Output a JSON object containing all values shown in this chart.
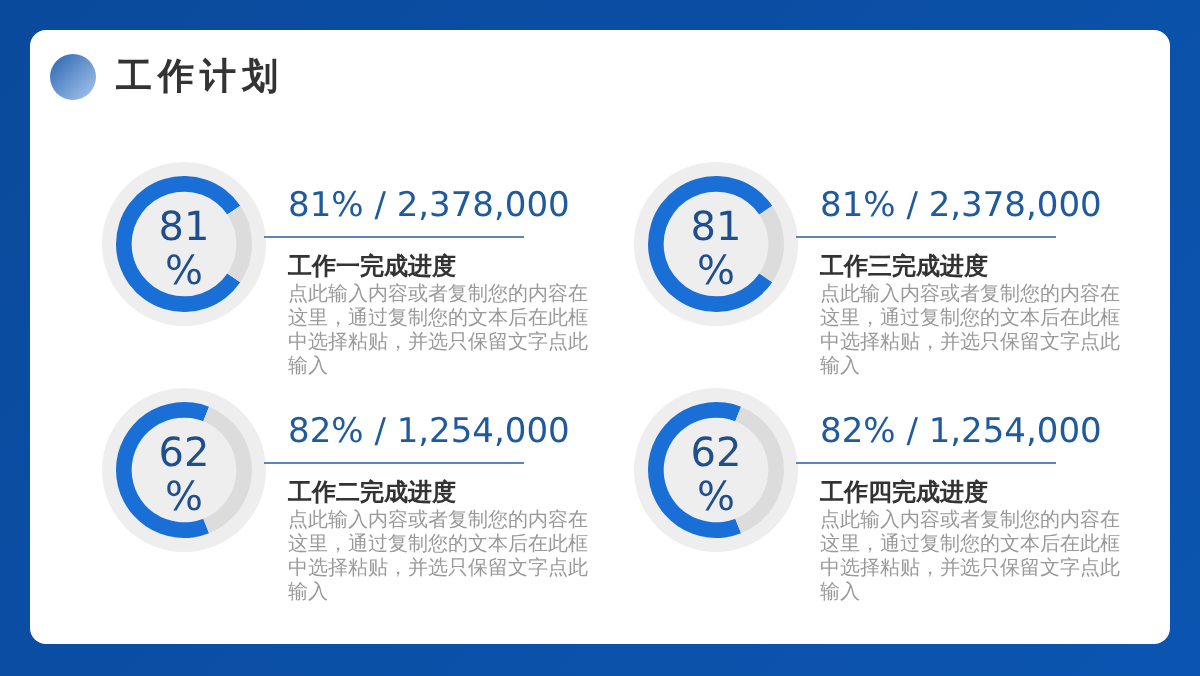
{
  "chart_data": [
    {
      "type": "other",
      "title": "工作计划"
    },
    {
      "type": "donut",
      "title": "工作一完成进度",
      "subtitle": "81% / 2,378,000",
      "categories": [
        null,
        null
      ],
      "values": [
        81,
        19
      ],
      "colors": [
        "#1a6fd6",
        "#dcdcdc"
      ],
      "annotations": [
        "81",
        "%",
        "点此输入内容或者复制您的内容在这里，通过复制您的文本后在此框中选择粘贴，并选只保留文字点此输入"
      ]
    },
    {
      "type": "donut",
      "title": "工作三完成进度",
      "subtitle": "81% / 2,378,000",
      "categories": [
        null,
        null
      ],
      "values": [
        81,
        19
      ],
      "colors": [
        "#1a6fd6",
        "#dcdcdc"
      ],
      "annotations": [
        "81",
        "%",
        "点此输入内容或者复制您的内容在这里，通过复制您的文本后在此框中选择粘贴，并选只保留文字点此输入"
      ]
    },
    {
      "type": "donut",
      "title": "工作二完成进度",
      "subtitle": "82% / 1,254,000",
      "categories": [
        null,
        null
      ],
      "values": [
        62,
        38
      ],
      "colors": [
        "#1a6fd6",
        "#dcdcdc"
      ],
      "annotations": [
        "62",
        "%",
        "点此输入内容或者复制您的内容在这里，通过复制您的文本后在此框中选择粘贴，并选只保留文字点此输入"
      ]
    },
    {
      "type": "donut",
      "title": "工作四完成进度",
      "subtitle": "82% / 1,254,000",
      "categories": [
        null,
        null
      ],
      "values": [
        62,
        38
      ],
      "colors": [
        "#1a6fd6",
        "#dcdcdc"
      ],
      "annotations": [
        "62",
        "%",
        "点此输入内容或者复制您的内容在这里，通过复制您的文本后在此框中选择粘贴，并选只保留文字点此输入"
      ]
    }
  ]
}
